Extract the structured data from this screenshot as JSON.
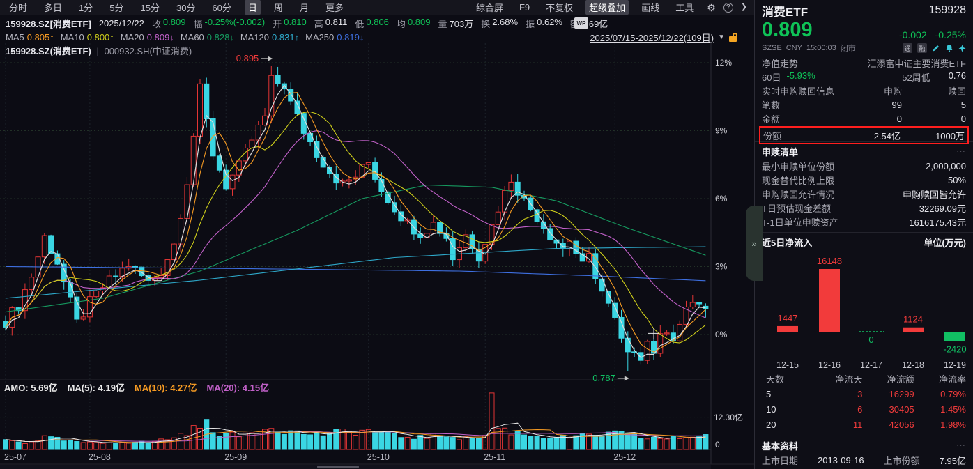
{
  "glyphs": {
    "gear": "⚙",
    "help": "?",
    "chevron": "❯",
    "caret": "▼",
    "more": "⋯",
    "collapse": "»"
  },
  "toolbar": {
    "tabs": [
      "分时",
      "多日",
      "1分",
      "5分",
      "15分",
      "30分",
      "60分",
      "日",
      "周",
      "月",
      "更多"
    ],
    "active_tab": "日",
    "right_items": [
      "综合屏",
      "F9",
      "不复权",
      "超级叠加",
      "画线",
      "工具"
    ],
    "active_right_item": "超级叠加"
  },
  "quote_bar": {
    "symbol": "159928.SZ[消费ETF]",
    "date": "2025/12/22",
    "wp_icon": "WP",
    "fields": [
      {
        "label": "收",
        "value": "0.809",
        "tone": "down"
      },
      {
        "label": "幅",
        "value": "-0.25%(-0.002)",
        "tone": "down"
      },
      {
        "label": "开",
        "value": "0.810",
        "tone": "down"
      },
      {
        "label": "高",
        "value": "0.811",
        "tone": "flat"
      },
      {
        "label": "低",
        "value": "0.806",
        "tone": "down"
      },
      {
        "label": "均",
        "value": "0.809",
        "tone": "down"
      },
      {
        "label": "量",
        "value": "703万",
        "tone": "flat"
      },
      {
        "label": "换",
        "value": "2.68%",
        "tone": "flat"
      },
      {
        "label": "振",
        "value": "0.62%",
        "tone": "flat"
      },
      {
        "label": "额",
        "value": "5.69亿",
        "tone": "flat"
      }
    ]
  },
  "ma_bar": {
    "items": [
      {
        "label": "MA5",
        "value": "0.805",
        "arrow": "↑",
        "color": "#f59a23"
      },
      {
        "label": "MA10",
        "value": "0.800",
        "arrow": "↑",
        "color": "#cfcf1b"
      },
      {
        "label": "MA20",
        "value": "0.809",
        "arrow": "↓",
        "color": "#c261c9"
      },
      {
        "label": "MA60",
        "value": "0.828",
        "arrow": "↓",
        "color": "#16995f"
      },
      {
        "label": "MA120",
        "value": "0.831",
        "arrow": "↑",
        "color": "#2ea8c9"
      },
      {
        "label": "MA250",
        "value": "0.819",
        "arrow": "↓",
        "color": "#3e6fe0"
      }
    ],
    "date_range": "2025/07/15-2025/12/22(109日)"
  },
  "overlay_bar": {
    "primary": "159928.SZ(消费ETF)",
    "divider": "|",
    "secondary": "000932.SH(中证消费)"
  },
  "chart_data": [
    {
      "type": "candlestick",
      "symbol": "159928.SZ",
      "period": "日",
      "date_range": "2025/07/15-2025/12/22",
      "days": 109,
      "base_price": 0.8,
      "y_axis_percent_ticks": [
        0,
        3,
        6,
        9,
        12
      ],
      "x_labels": [
        {
          "label": "25-07",
          "day": 0
        },
        {
          "label": "25-08",
          "day": 13
        },
        {
          "label": "25-09",
          "day": 34
        },
        {
          "label": "25-10",
          "day": 56
        },
        {
          "label": "25-11",
          "day": 74
        },
        {
          "label": "25-12",
          "day": 94
        }
      ],
      "annotations": [
        {
          "text": "0.895",
          "day": 41,
          "pct": 11.875,
          "color": "#f03b3b"
        },
        {
          "text": "0.787",
          "day": 96,
          "pct": -1.625,
          "color": "#11bf63"
        }
      ],
      "last_candle": {
        "open_pct": 1.25,
        "close_pct": 1.125,
        "high_pct": 1.375,
        "low_pct": 0.75
      },
      "high_override": {
        "day": 41,
        "pct": 11.875
      },
      "low_override": {
        "day": 96,
        "pct": -1.625
      },
      "close_pct_keyframes": [
        [
          0,
          0.6
        ],
        [
          2,
          1.3
        ],
        [
          4,
          2.6
        ],
        [
          6,
          4.3
        ],
        [
          8,
          3.2
        ],
        [
          10,
          1.4
        ],
        [
          11,
          0.5
        ],
        [
          13,
          1.4
        ],
        [
          15,
          2.1
        ],
        [
          17,
          2.6
        ],
        [
          19,
          3.1
        ],
        [
          22,
          2.3
        ],
        [
          24,
          2.8
        ],
        [
          26,
          4.0
        ],
        [
          28,
          6.8
        ],
        [
          30,
          10.8
        ],
        [
          32,
          8.0
        ],
        [
          34,
          6.6
        ],
        [
          36,
          7.4
        ],
        [
          38,
          8.6
        ],
        [
          40,
          9.6
        ],
        [
          41,
          11.2
        ],
        [
          43,
          11.0
        ],
        [
          44,
          10.2
        ],
        [
          46,
          9.0
        ],
        [
          48,
          8.0
        ],
        [
          50,
          7.2
        ],
        [
          52,
          6.6
        ],
        [
          54,
          7.0
        ],
        [
          56,
          7.6
        ],
        [
          58,
          6.4
        ],
        [
          60,
          5.6
        ],
        [
          62,
          4.9
        ],
        [
          64,
          4.5
        ],
        [
          66,
          4.9
        ],
        [
          68,
          4.3
        ],
        [
          69,
          3.4
        ],
        [
          71,
          4.4
        ],
        [
          73,
          3.5
        ],
        [
          75,
          4.8
        ],
        [
          76,
          5.6
        ],
        [
          78,
          6.9
        ],
        [
          80,
          5.9
        ],
        [
          82,
          5.2
        ],
        [
          84,
          4.4
        ],
        [
          86,
          3.8
        ],
        [
          87,
          4.2
        ],
        [
          89,
          3.0
        ],
        [
          90,
          3.4
        ],
        [
          92,
          1.9
        ],
        [
          94,
          0.6
        ],
        [
          95,
          -0.3
        ],
        [
          96,
          -1.0
        ],
        [
          97,
          -0.6
        ],
        [
          98,
          -0.9
        ],
        [
          99,
          -0.3
        ],
        [
          100,
          -0.7
        ],
        [
          102,
          0.3
        ],
        [
          103,
          -0.1
        ],
        [
          105,
          1.0
        ],
        [
          106,
          1.5
        ],
        [
          108,
          1.125
        ]
      ],
      "ma60_pct_keyframes": [
        [
          0,
          1.0
        ],
        [
          15,
          1.6
        ],
        [
          30,
          2.8
        ],
        [
          45,
          4.6
        ],
        [
          55,
          6.0
        ],
        [
          65,
          6.6
        ],
        [
          75,
          6.5
        ],
        [
          85,
          5.9
        ],
        [
          95,
          4.8
        ],
        [
          103,
          4.0
        ],
        [
          108,
          3.5
        ]
      ],
      "ma120_pct_keyframes": [
        [
          0,
          1.6
        ],
        [
          30,
          2.4
        ],
        [
          60,
          3.4
        ],
        [
          85,
          3.8
        ],
        [
          108,
          3.875
        ]
      ],
      "ma250_pct_keyframes": [
        [
          0,
          3.0
        ],
        [
          40,
          2.9
        ],
        [
          70,
          2.8
        ],
        [
          90,
          2.6
        ],
        [
          108,
          2.375
        ]
      ],
      "line_colors": {
        "ma5": "#f59a23",
        "ma10": "#cfcf1b",
        "ma20": "#c261c9",
        "ma60": "#16995f",
        "ma120": "#2ea8c9",
        "ma250": "#3e6fe0",
        "index_overlay": "#dcdcdc"
      },
      "candle_colors": {
        "up": "#e23535",
        "down": "#3ad6e3"
      },
      "crosshair": {
        "day": 100,
        "pct": 0.05
      },
      "volume_y_ticks": [
        "12.30亿",
        "0"
      ],
      "volume_max_yi": 22,
      "volume_yi_keyframes": [
        [
          0,
          3.5
        ],
        [
          3,
          2.5
        ],
        [
          6,
          4.5
        ],
        [
          10,
          3.0
        ],
        [
          14,
          2.2
        ],
        [
          18,
          3.0
        ],
        [
          22,
          2.5
        ],
        [
          26,
          4.5
        ],
        [
          29,
          7.5
        ],
        [
          31,
          9.5
        ],
        [
          33,
          6.0
        ],
        [
          36,
          5.0
        ],
        [
          39,
          7.5
        ],
        [
          41,
          8.5
        ],
        [
          44,
          6.5
        ],
        [
          48,
          5.5
        ],
        [
          52,
          6.5
        ],
        [
          56,
          7.0
        ],
        [
          60,
          5.0
        ],
        [
          64,
          4.5
        ],
        [
          68,
          5.5
        ],
        [
          71,
          4.0
        ],
        [
          74,
          5.0
        ],
        [
          75,
          21.5
        ],
        [
          76,
          8.0
        ],
        [
          78,
          6.5
        ],
        [
          82,
          5.0
        ],
        [
          86,
          4.5
        ],
        [
          90,
          5.0
        ],
        [
          94,
          6.0
        ],
        [
          98,
          4.5
        ],
        [
          102,
          4.0
        ],
        [
          105,
          4.5
        ],
        [
          108,
          5.69
        ]
      ],
      "amo_legend": [
        {
          "label": "AMO:",
          "value": "5.69亿",
          "color": "#e8e8e8"
        },
        {
          "label": "MA(5):",
          "value": "4.19亿",
          "color": "#e8e8e8"
        },
        {
          "label": "MA(10):",
          "value": "4.27亿",
          "color": "#f59a23"
        },
        {
          "label": "MA(20):",
          "value": "4.15亿",
          "color": "#c261c9"
        }
      ]
    },
    {
      "type": "bar",
      "title": "近5日净流入",
      "unit_label": "单位(万元)",
      "categories": [
        "12-15",
        "12-16",
        "12-17",
        "12-18",
        "12-19"
      ],
      "values": [
        1447,
        16148,
        0,
        1124,
        -2420
      ],
      "positive_color": "#f23b3b",
      "negative_color": "#11bf63"
    }
  ],
  "side_panel": {
    "header": {
      "name": "消费ETF",
      "code": "159928",
      "price": "0.809",
      "change": "-0.002",
      "change_pct": "-0.25%",
      "exchange": "SZSE",
      "currency": "CNY",
      "time": "15:00:03",
      "status": "闭市",
      "badges": [
        "通",
        "融"
      ]
    },
    "nav": {
      "label": "净值走势",
      "value": "汇添富中证主要消费ETF",
      "row2": [
        {
          "label": "60日",
          "value": "-5.93%",
          "tone": "down"
        },
        {
          "label": "52周低",
          "value": "0.76",
          "tone": "flat"
        }
      ]
    },
    "realtime": {
      "title": "实时申购赎回信息",
      "col1": "申购",
      "col2": "赎回",
      "rows": [
        {
          "label": "笔数",
          "v1": "99",
          "v2": "5",
          "highlight": false
        },
        {
          "label": "金额",
          "v1": "0",
          "v2": "0",
          "highlight": false
        },
        {
          "label": "份额",
          "v1": "2.54亿",
          "v2": "1000万",
          "highlight": true
        }
      ]
    },
    "redemption_list": {
      "title": "申赎清单",
      "rows": [
        {
          "label": "最小申赎单位份额",
          "value": "2,000,000"
        },
        {
          "label": "现金替代比例上限",
          "value": "50%"
        },
        {
          "label": "申购赎回允许情况",
          "value": "申购赎回皆允许"
        },
        {
          "label": "T日预估现金差额",
          "value": "32269.09元"
        },
        {
          "label": "T-1日单位申赎资产",
          "value": "1616175.43元"
        }
      ]
    },
    "flow_table": {
      "headers": [
        "天数",
        "净流天",
        "净流额",
        "净流率"
      ],
      "rows": [
        [
          "5",
          "3",
          "16299",
          "0.79%"
        ],
        [
          "10",
          "6",
          "30405",
          "1.45%"
        ],
        [
          "20",
          "11",
          "42056",
          "1.98%"
        ]
      ]
    },
    "basic_info": {
      "title": "基本资料",
      "label1": "上市日期",
      "value1": "2013-09-16",
      "label2": "上市份额",
      "value2": "7.95亿"
    }
  }
}
